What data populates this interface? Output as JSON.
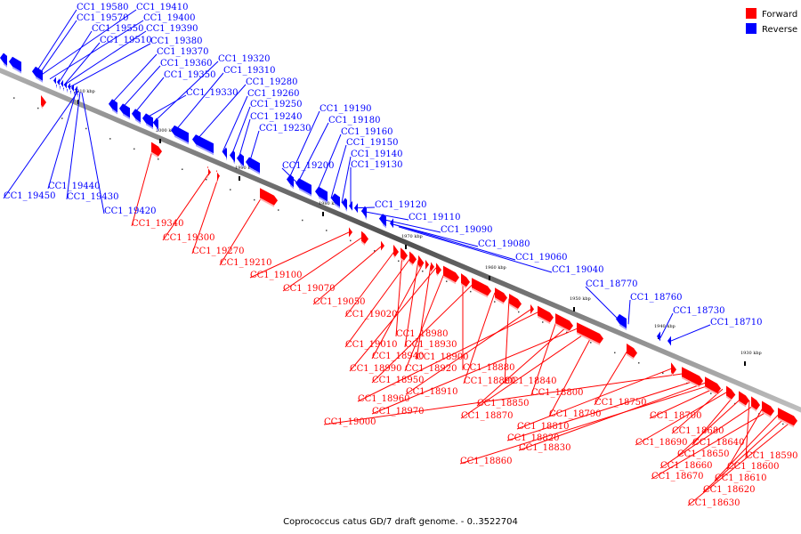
{
  "caption": "Coprococcus catus GD/7 draft genome. - 0..3522704",
  "legend": [
    {
      "label": "Forward",
      "color": "#ff0000"
    },
    {
      "label": "Reverse",
      "color": "#0000ff"
    }
  ],
  "colors": {
    "forward": "#ff0000",
    "reverse": "#0000ff",
    "axis": "#808080"
  },
  "kbp_ticks": [
    "2010 kbp",
    "2000 kbp",
    "1990 kbp",
    "1980 kbp",
    "1970 kbp",
    "1960 kbp",
    "1950 kbp",
    "1940 kbp",
    "1930 kbp"
  ],
  "reverse_labels": [
    "CC1_19580",
    "CC1_19410",
    "CC1_19570",
    "CC1_19400",
    "CC1_19550",
    "CC1_19390",
    "CC1_19510",
    "CC1_19380",
    "CC1_19370",
    "CC1_19360",
    "CC1_19350",
    "CC1_19330",
    "CC1_19320",
    "CC1_19310",
    "CC1_19280",
    "CC1_19260",
    "CC1_19250",
    "CC1_19240",
    "CC1_19230",
    "CC1_19190",
    "CC1_19180",
    "CC1_19160",
    "CC1_19150",
    "CC1_19140",
    "CC1_19200",
    "CC1_19130",
    "CC1_19440",
    "CC1_19450",
    "CC1_19430",
    "CC1_19420",
    "CC1_19120",
    "CC1_19110",
    "CC1_19090",
    "CC1_19080",
    "CC1_19060",
    "CC1_19040",
    "CC1_18770",
    "CC1_18760",
    "CC1_18730",
    "CC1_18710"
  ],
  "forward_labels": [
    "CC1_19340",
    "CC1_19300",
    "CC1_19270",
    "CC1_19210",
    "CC1_19100",
    "CC1_19070",
    "CC1_19050",
    "CC1_19020",
    "CC1_18980",
    "CC1_19010",
    "CC1_18930",
    "CC1_18940",
    "CC1_18900",
    "CC1_18990",
    "CC1_18920",
    "CC1_18880",
    "CC1_18950",
    "CC1_18890",
    "CC1_18840",
    "CC1_18910",
    "CC1_18960",
    "CC1_18800",
    "CC1_18850",
    "CC1_18970",
    "CC1_18870",
    "CC1_18790",
    "CC1_18750",
    "CC1_18810",
    "CC1_19000",
    "CC1_18820",
    "CC1_18830",
    "CC1_18860",
    "CC1_18700",
    "CC1_18680",
    "CC1_18690",
    "CC1_18640",
    "CC1_18650",
    "CC1_18590",
    "CC1_18660",
    "CC1_18600",
    "CC1_18670",
    "CC1_18610",
    "CC1_18620",
    "CC1_18630"
  ]
}
